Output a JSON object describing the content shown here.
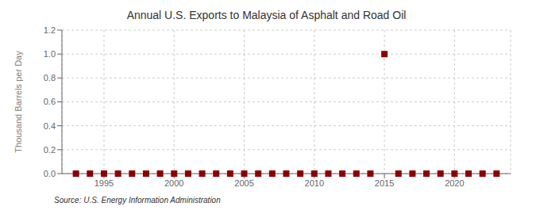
{
  "chart_data": {
    "type": "scatter",
    "title": "Annual U.S. Exports to Malaysia of Asphalt and Road Oil",
    "ylabel": "Thousand Barrels per Day",
    "annotation": "Source: U.S. Energy Information Administration",
    "x": [
      1993,
      1994,
      1995,
      1996,
      1997,
      1998,
      1999,
      2000,
      2001,
      2002,
      2003,
      2004,
      2005,
      2006,
      2007,
      2008,
      2009,
      2010,
      2011,
      2012,
      2013,
      2014,
      2015,
      2016,
      2017,
      2018,
      2019,
      2020,
      2021,
      2022,
      2023
    ],
    "values": [
      0,
      0,
      0,
      0,
      0,
      0,
      0,
      0,
      0,
      0,
      0,
      0,
      0,
      0,
      0,
      0,
      0,
      0,
      0,
      0,
      0,
      0,
      1.0,
      0,
      0,
      0,
      0,
      0,
      0,
      0,
      0
    ],
    "color": "#8b0000",
    "marker": "square",
    "xlim": [
      1992.0,
      2024.0
    ],
    "xticks": [
      1995,
      2000,
      2005,
      2010,
      2015,
      2020
    ],
    "ylim": [
      0,
      1.2
    ],
    "yticks": [
      {
        "value": 0.0,
        "label": "0.0"
      },
      0.2,
      0.4,
      0.6,
      0.8,
      {
        "value": 1.0,
        "label": "1.0"
      },
      1.2
    ],
    "grid": true
  }
}
